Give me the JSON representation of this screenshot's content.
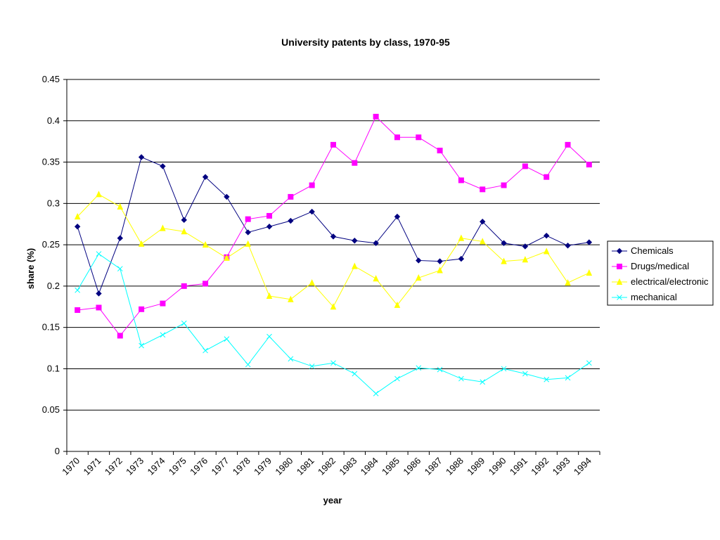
{
  "chart_data": {
    "type": "line",
    "title": "University patents by class, 1970-95",
    "xlabel": "year",
    "ylabel": "share (%)",
    "ylim": [
      0,
      0.45
    ],
    "yticks": [
      "0",
      "0.05",
      "0.1",
      "0.15",
      "0.2",
      "0.25",
      "0.3",
      "0.35",
      "0.4",
      "0.45"
    ],
    "ytick_values": [
      0,
      0.05,
      0.1,
      0.15,
      0.2,
      0.25,
      0.3,
      0.35,
      0.4,
      0.45
    ],
    "grid": "horizontal",
    "legend_position": "right",
    "categories": [
      "1970",
      "1971",
      "1972",
      "1973",
      "1974",
      "1975",
      "1976",
      "1977",
      "1978",
      "1979",
      "1980",
      "1981",
      "1982",
      "1983",
      "1984",
      "1985",
      "1986",
      "1987",
      "1988",
      "1989",
      "1990",
      "1991",
      "1992",
      "1993",
      "1994"
    ],
    "series": [
      {
        "name": "Chemicals",
        "color": "#000080",
        "marker": "diamond",
        "values": [
          0.272,
          0.191,
          0.258,
          0.356,
          0.345,
          0.28,
          0.332,
          0.308,
          0.265,
          0.272,
          0.279,
          0.29,
          0.26,
          0.255,
          0.252,
          0.284,
          0.231,
          0.23,
          0.233,
          0.278,
          0.252,
          0.248,
          0.261,
          0.249,
          0.253
        ]
      },
      {
        "name": "Drugs/medical",
        "color": "#ff00ff",
        "marker": "square",
        "values": [
          0.171,
          0.174,
          0.14,
          0.172,
          0.179,
          0.2,
          0.203,
          0.235,
          0.281,
          0.285,
          0.308,
          0.322,
          0.371,
          0.349,
          0.405,
          0.38,
          0.38,
          0.364,
          0.328,
          0.317,
          0.322,
          0.345,
          0.332,
          0.371,
          0.347
        ]
      },
      {
        "name": "electrical/electronic",
        "color": "#ffff00",
        "marker": "triangle",
        "values": [
          0.284,
          0.311,
          0.296,
          0.251,
          0.27,
          0.266,
          0.25,
          0.234,
          0.251,
          0.188,
          0.184,
          0.204,
          0.175,
          0.224,
          0.209,
          0.177,
          0.21,
          0.219,
          0.258,
          0.254,
          0.23,
          0.232,
          0.242,
          0.204,
          0.216
        ]
      },
      {
        "name": "mechanical",
        "color": "#00ffff",
        "marker": "x",
        "values": [
          0.195,
          0.239,
          0.221,
          0.128,
          0.141,
          0.155,
          0.122,
          0.136,
          0.105,
          0.139,
          0.112,
          0.103,
          0.107,
          0.094,
          0.07,
          0.088,
          0.101,
          0.099,
          0.088,
          0.084,
          0.1,
          0.094,
          0.087,
          0.089,
          0.107
        ]
      }
    ]
  }
}
